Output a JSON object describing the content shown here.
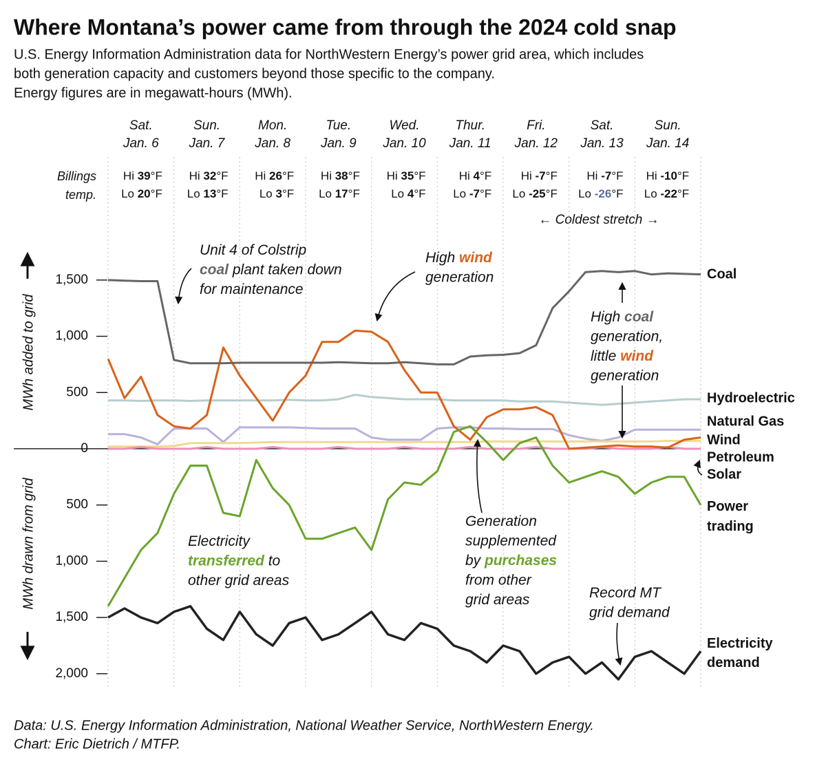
{
  "chart_data": {
    "type": "line",
    "title": "Where Montana’s power came from through the 2024 cold snap",
    "subtitle": [
      "U.S. Energy Information Administration data for NorthWestern Energy’s power grid area, which includes",
      "both generation capacity and customers beyond those specific to the company.",
      "Energy figures are in megawatt-hours (MWh)."
    ],
    "footer": [
      "Data: U.S. Energy Information Administration, National Weather Service, NorthWestern Energy.",
      "Chart: Eric Dietrich / MTFP."
    ],
    "ylabel_top": "MWh added to grid",
    "ylabel_bottom": "MWh drawn from grid",
    "temp_label": [
      "Billings",
      "temp."
    ],
    "hi_label": "Hi",
    "lo_label": "Lo",
    "unit": "°F",
    "days": [
      {
        "dow": "Sat.",
        "date": "Jan. 6",
        "hi": "39",
        "lo": "20"
      },
      {
        "dow": "Sun.",
        "date": "Jan. 7",
        "hi": "32",
        "lo": "13"
      },
      {
        "dow": "Mon.",
        "date": "Jan. 8",
        "hi": "26",
        "lo": "3"
      },
      {
        "dow": "Tue.",
        "date": "Jan. 9",
        "hi": "38",
        "lo": "17"
      },
      {
        "dow": "Wed.",
        "date": "Jan. 10",
        "hi": "35",
        "lo": "4"
      },
      {
        "dow": "Thur.",
        "date": "Jan. 11",
        "hi": "4",
        "lo": "-7"
      },
      {
        "dow": "Fri.",
        "date": "Jan. 12",
        "hi": "-7",
        "lo": "-25"
      },
      {
        "dow": "Sat.",
        "date": "Jan. 13",
        "hi": "-7",
        "lo": "-26",
        "lo_color": "#5b6f9c"
      },
      {
        "dow": "Sun.",
        "date": "Jan. 14",
        "hi": "-10",
        "lo": "-22"
      }
    ],
    "coldest_label": "← Coldest stretch →",
    "x": [
      0,
      6,
      12,
      18,
      24,
      30,
      36,
      42,
      48,
      54,
      60,
      66,
      72,
      78,
      84,
      90,
      96,
      102,
      108,
      114,
      120,
      126,
      132,
      138,
      144,
      150,
      156,
      162,
      168,
      174,
      180,
      186,
      192,
      198,
      204,
      210,
      216
    ],
    "xlim": [
      0,
      216
    ],
    "ylim": [
      -2050,
      1750
    ],
    "yticks": [
      {
        "value": 1500,
        "label": "1,500"
      },
      {
        "value": 1000,
        "label": "1,000"
      },
      500,
      0,
      {
        "value": -500,
        "label": "500"
      },
      {
        "value": -1000,
        "label": "1,000"
      },
      {
        "value": -1500,
        "label": "1,500"
      },
      {
        "value": -2000,
        "label": "2,000"
      }
    ],
    "series": [
      {
        "name": "Hydroelectric",
        "color": "#b7cdcd",
        "values": [
          430,
          430,
          425,
          430,
          430,
          425,
          430,
          430,
          430,
          430,
          430,
          435,
          430,
          430,
          440,
          480,
          460,
          450,
          440,
          440,
          440,
          430,
          430,
          430,
          430,
          420,
          420,
          420,
          410,
          400,
          390,
          400,
          410,
          420,
          430,
          440,
          440
        ]
      },
      {
        "name": "Natural Gas",
        "color": "#b9b1dd",
        "values": [
          130,
          130,
          100,
          40,
          180,
          180,
          180,
          60,
          190,
          190,
          190,
          190,
          185,
          180,
          180,
          180,
          100,
          80,
          80,
          80,
          180,
          190,
          190,
          180,
          180,
          175,
          175,
          175,
          120,
          90,
          70,
          100,
          170,
          170,
          170,
          170,
          170
        ]
      },
      {
        "name": "Petroleum",
        "color": "#f2d98e",
        "values": [
          20,
          20,
          20,
          20,
          25,
          50,
          50,
          50,
          50,
          55,
          60,
          60,
          60,
          60,
          60,
          60,
          60,
          60,
          60,
          60,
          60,
          60,
          60,
          65,
          65,
          65,
          65,
          65,
          65,
          65,
          65,
          65,
          65,
          65,
          70,
          70,
          70
        ]
      },
      {
        "name": "Solar",
        "color": "#ee8fb8",
        "values": [
          0,
          0,
          15,
          0,
          0,
          0,
          15,
          0,
          0,
          0,
          15,
          0,
          0,
          0,
          15,
          0,
          0,
          0,
          15,
          0,
          0,
          0,
          15,
          0,
          0,
          0,
          15,
          0,
          0,
          0,
          15,
          0,
          0,
          0,
          15,
          0,
          0
        ]
      },
      {
        "name": "Wind",
        "color": "#d9621a",
        "values": [
          800,
          450,
          640,
          300,
          200,
          180,
          300,
          900,
          650,
          450,
          250,
          500,
          650,
          950,
          950,
          1050,
          1040,
          950,
          700,
          500,
          500,
          200,
          80,
          280,
          350,
          350,
          370,
          300,
          0,
          10,
          20,
          30,
          20,
          20,
          10,
          80,
          100
        ]
      },
      {
        "name": "Coal",
        "color": "#666666",
        "values": [
          1500,
          1495,
          1490,
          1490,
          790,
          760,
          760,
          760,
          765,
          765,
          765,
          765,
          765,
          765,
          770,
          765,
          760,
          760,
          770,
          760,
          750,
          750,
          820,
          830,
          835,
          850,
          920,
          1250,
          1400,
          1570,
          1580,
          1570,
          1580,
          1550,
          1560,
          1555,
          1550
        ]
      },
      {
        "name": "Power trading",
        "color": "#6aa52c",
        "values": [
          -1400,
          -1150,
          -900,
          -750,
          -400,
          -150,
          -150,
          -570,
          -600,
          -100,
          -350,
          -500,
          -800,
          -800,
          -750,
          -700,
          -900,
          -450,
          -300,
          -320,
          -200,
          150,
          200,
          60,
          -100,
          50,
          100,
          -150,
          -300,
          -250,
          -200,
          -250,
          -400,
          -300,
          -250,
          -250,
          -500
        ]
      },
      {
        "name": "Electricity demand",
        "color": "#222222",
        "values": [
          -1500,
          -1420,
          -1500,
          -1550,
          -1450,
          -1400,
          -1600,
          -1700,
          -1450,
          -1650,
          -1750,
          -1550,
          -1500,
          -1700,
          -1650,
          -1550,
          -1450,
          -1650,
          -1700,
          -1550,
          -1600,
          -1750,
          -1800,
          -1900,
          -1750,
          -1800,
          -2000,
          -1900,
          -1850,
          -2000,
          -1900,
          -2050,
          -1850,
          -1800,
          -1900,
          -2000,
          -1800
        ]
      }
    ],
    "annotations": [
      {
        "lines": [
          [
            {
              "text": "Unit 4 of Colstrip"
            }
          ],
          [
            {
              "text": "coal",
              "color": "#666666"
            },
            {
              "text": " plant taken down"
            }
          ],
          [
            {
              "text": "for maintenance"
            }
          ]
        ]
      },
      {
        "lines": [
          [
            {
              "text": "High "
            },
            {
              "text": "wind",
              "color": "#d9621a"
            }
          ],
          [
            {
              "text": "generation"
            }
          ]
        ]
      },
      {
        "lines": [
          [
            {
              "text": "High "
            },
            {
              "text": "coal",
              "color": "#666666"
            }
          ],
          [
            {
              "text": "generation,"
            }
          ],
          [
            {
              "text": "little "
            },
            {
              "text": "wind",
              "color": "#d9621a"
            }
          ],
          [
            {
              "text": "generation"
            }
          ]
        ]
      },
      {
        "lines": [
          [
            {
              "text": "Electricity"
            }
          ],
          [
            {
              "text": "transferred",
              "color": "#6aa52c"
            },
            {
              "text": " to"
            }
          ],
          [
            {
              "text": "other grid areas"
            }
          ]
        ]
      },
      {
        "lines": [
          [
            {
              "text": "Generation"
            }
          ],
          [
            {
              "text": "supplemented"
            }
          ],
          [
            {
              "text": "by "
            },
            {
              "text": "purchases",
              "color": "#6aa52c"
            }
          ],
          [
            {
              "text": "from other"
            }
          ],
          [
            {
              "text": "grid areas"
            }
          ]
        ]
      },
      {
        "lines": [
          [
            {
              "text": "Record MT"
            }
          ],
          [
            {
              "text": "grid demand"
            }
          ]
        ]
      }
    ]
  }
}
